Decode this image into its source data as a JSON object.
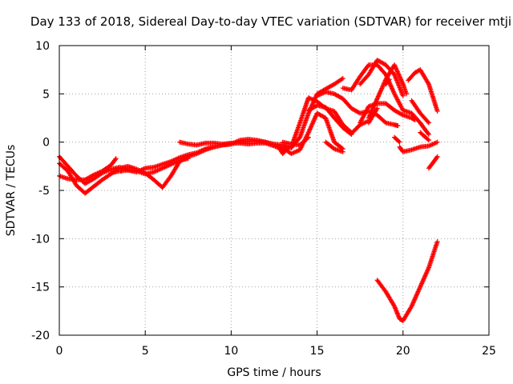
{
  "chart_data": {
    "type": "scatter",
    "title": "Day 133 of 2018, Sidereal Day-to-day VTEC variation (SDTVAR) for receiver mtji",
    "xlabel": "GPS time / hours",
    "ylabel": "SDTVAR / TECUs",
    "xlim": [
      0,
      25
    ],
    "ylim": [
      -20,
      10
    ],
    "xticks": [
      0,
      5,
      10,
      15,
      20,
      25
    ],
    "yticks": [
      -20,
      -15,
      -10,
      -5,
      0,
      5,
      10
    ],
    "grid": true,
    "marker": "plus",
    "color": "#ff0000",
    "tracks": [
      [
        [
          0,
          -1.5
        ],
        [
          0.5,
          -2.5
        ],
        [
          1.0,
          -3.5
        ],
        [
          1.5,
          -4.3
        ],
        [
          2.0,
          -3.8
        ],
        [
          2.5,
          -3.2
        ],
        [
          3.0,
          -2.8
        ],
        [
          3.5,
          -2.6
        ],
        [
          4.0,
          -2.9
        ],
        [
          4.5,
          -3.1
        ],
        [
          5.0,
          -2.7
        ],
        [
          5.5,
          -2.6
        ],
        [
          6.0,
          -2.3
        ],
        [
          6.5,
          -2.0
        ],
        [
          7.0,
          -1.6
        ],
        [
          7.5,
          -1.3
        ],
        [
          8.0,
          -1.1
        ],
        [
          8.5,
          -0.7
        ],
        [
          9.0,
          -0.5
        ],
        [
          9.5,
          -0.3
        ],
        [
          10.0,
          -0.2
        ],
        [
          10.5,
          0.0
        ],
        [
          11.0,
          0.1
        ],
        [
          11.5,
          0.1
        ],
        [
          12.0,
          0.0
        ],
        [
          12.5,
          -0.2
        ],
        [
          13.0,
          -0.3
        ],
        [
          13.5,
          -0.6
        ],
        [
          14.0,
          0.5
        ],
        [
          14.5,
          3.0
        ],
        [
          15.0,
          5.0
        ],
        [
          15.5,
          5.5
        ],
        [
          16.0,
          6.0
        ],
        [
          16.5,
          6.6
        ]
      ],
      [
        [
          0,
          -2.2
        ],
        [
          0.5,
          -3.0
        ],
        [
          1.0,
          -4.5
        ],
        [
          1.5,
          -5.3
        ],
        [
          2.0,
          -4.6
        ],
        [
          2.5,
          -3.9
        ],
        [
          3.0,
          -3.3
        ],
        [
          3.5,
          -2.7
        ],
        [
          4.0,
          -2.5
        ],
        [
          4.5,
          -2.8
        ],
        [
          5.0,
          -3.2
        ],
        [
          5.5,
          -3.9
        ],
        [
          6.0,
          -4.7
        ],
        [
          6.5,
          -3.5
        ],
        [
          7.0,
          -2.0
        ],
        [
          7.5,
          -1.5
        ],
        [
          8.0,
          -1.2
        ],
        [
          8.5,
          -0.8
        ],
        [
          9.0,
          -0.5
        ],
        [
          9.5,
          -0.3
        ],
        [
          10.0,
          -0.2
        ],
        [
          10.5,
          0.2
        ],
        [
          11.0,
          0.3
        ],
        [
          11.5,
          0.2
        ],
        [
          12.0,
          0.0
        ],
        [
          12.5,
          -0.3
        ],
        [
          13.0,
          -0.6
        ],
        [
          13.5,
          -1.2
        ],
        [
          14.0,
          -0.8
        ],
        [
          14.5,
          1.0
        ],
        [
          15.0,
          3.0
        ],
        [
          15.5,
          2.5
        ],
        [
          16.0,
          0.0
        ],
        [
          16.5,
          -0.7
        ]
      ],
      [
        [
          0,
          -3.5
        ],
        [
          0.5,
          -3.8
        ],
        [
          1.0,
          -3.9
        ],
        [
          1.5,
          -3.9
        ],
        [
          2.0,
          -3.4
        ],
        [
          2.5,
          -3.0
        ],
        [
          3.0,
          -2.4
        ],
        [
          3.3,
          -1.7
        ]
      ],
      [
        [
          3.0,
          -3.2
        ],
        [
          3.5,
          -3.0
        ],
        [
          4.0,
          -2.9
        ],
        [
          4.5,
          -3.0
        ],
        [
          5.0,
          -3.3
        ],
        [
          5.5,
          -3.1
        ],
        [
          6.0,
          -2.7
        ],
        [
          6.5,
          -2.3
        ],
        [
          7.0,
          -1.9
        ],
        [
          7.5,
          -1.7
        ]
      ],
      [
        [
          7.0,
          0.0
        ],
        [
          7.5,
          -0.2
        ],
        [
          8.0,
          -0.3
        ],
        [
          8.5,
          -0.1
        ],
        [
          9.0,
          -0.1
        ],
        [
          9.5,
          -0.2
        ],
        [
          10.0,
          -0.1
        ],
        [
          10.5,
          -0.1
        ],
        [
          11.0,
          -0.2
        ],
        [
          11.5,
          -0.1
        ],
        [
          12.0,
          -0.1
        ],
        [
          12.5,
          -0.4
        ],
        [
          13.0,
          -0.8
        ],
        [
          13.5,
          -0.5
        ],
        [
          14.0,
          2.0
        ],
        [
          14.5,
          4.6
        ],
        [
          15.0,
          4.2
        ],
        [
          15.5,
          3.5
        ],
        [
          16.0,
          3.2
        ],
        [
          16.5,
          1.8
        ],
        [
          17.0,
          1.0
        ]
      ],
      [
        [
          13.0,
          0.0
        ],
        [
          13.5,
          -0.2
        ],
        [
          14.0,
          -0.3
        ],
        [
          14.5,
          0.5
        ]
      ],
      [
        [
          12.8,
          -0.6
        ],
        [
          13.0,
          -1.2
        ],
        [
          13.2,
          -0.8
        ]
      ],
      [
        [
          14.5,
          3.3
        ],
        [
          15.0,
          3.8
        ],
        [
          15.5,
          3.6
        ],
        [
          16.0,
          2.5
        ],
        [
          16.5,
          1.5
        ],
        [
          17.0,
          0.8
        ]
      ],
      [
        [
          15.0,
          4.8
        ],
        [
          15.5,
          5.2
        ],
        [
          16.0,
          5.0
        ],
        [
          16.5,
          4.5
        ],
        [
          17.0,
          3.5
        ],
        [
          17.5,
          3.0
        ],
        [
          18.0,
          3.2
        ],
        [
          18.5,
          2.8
        ],
        [
          19.0,
          2.0
        ],
        [
          19.5,
          1.8
        ],
        [
          19.7,
          1.7
        ]
      ],
      [
        [
          16.5,
          5.6
        ],
        [
          17.0,
          5.4
        ],
        [
          17.5,
          6.8
        ],
        [
          18.0,
          8.0
        ],
        [
          18.5,
          8.0
        ],
        [
          19.0,
          7.0
        ],
        [
          19.5,
          5.0
        ],
        [
          20.0,
          3.3
        ],
        [
          20.5,
          3.0
        ],
        [
          21.0,
          2.0
        ],
        [
          21.2,
          1.5
        ],
        [
          21.5,
          0.8
        ]
      ],
      [
        [
          17.5,
          2.0
        ],
        [
          18.0,
          3.7
        ],
        [
          18.5,
          4.0
        ],
        [
          19.0,
          4.0
        ],
        [
          19.5,
          3.3
        ],
        [
          20.0,
          2.8
        ],
        [
          20.5,
          2.5
        ],
        [
          20.7,
          2.3
        ]
      ],
      [
        [
          18.0,
          2.5
        ],
        [
          18.5,
          4.5
        ],
        [
          19.0,
          6.5
        ],
        [
          19.5,
          8.0
        ],
        [
          20.0,
          6.0
        ],
        [
          20.2,
          5.0
        ]
      ],
      [
        [
          15.5,
          0.0
        ],
        [
          16.0,
          -0.7
        ],
        [
          16.5,
          -1.0
        ]
      ],
      [
        [
          17.0,
          0.9
        ],
        [
          17.5,
          1.8
        ],
        [
          18.0,
          2.2
        ]
      ],
      [
        [
          17.5,
          6.0
        ],
        [
          18.0,
          7.0
        ],
        [
          18.5,
          8.5
        ],
        [
          19.0,
          8.0
        ],
        [
          19.5,
          7.0
        ],
        [
          20.0,
          4.8
        ]
      ],
      [
        [
          19.0,
          6.0
        ],
        [
          19.2,
          6.5
        ]
      ],
      [
        [
          18.0,
          2.0
        ],
        [
          18.5,
          3.5
        ]
      ],
      [
        [
          19.8,
          -0.5
        ],
        [
          20.0,
          -1.0
        ],
        [
          20.5,
          -0.8
        ],
        [
          21.0,
          -0.5
        ],
        [
          21.5,
          -0.4
        ],
        [
          22.0,
          0.0
        ]
      ],
      [
        [
          19.5,
          0.5
        ],
        [
          19.8,
          0.0
        ]
      ],
      [
        [
          20.3,
          6.4
        ],
        [
          20.7,
          7.2
        ],
        [
          21.0,
          7.5
        ],
        [
          21.5,
          6.0
        ],
        [
          22.0,
          3.2
        ]
      ],
      [
        [
          20.5,
          4.3
        ],
        [
          21.0,
          3.0
        ],
        [
          21.5,
          2.0
        ]
      ],
      [
        [
          21.0,
          1.0
        ],
        [
          21.5,
          0.2
        ]
      ],
      [
        [
          21.5,
          -2.7
        ],
        [
          21.8,
          -2.0
        ],
        [
          22.0,
          -1.5
        ]
      ],
      [
        [
          18.5,
          -14.3
        ],
        [
          19.0,
          -15.5
        ],
        [
          19.5,
          -17.0
        ],
        [
          19.8,
          -18.3
        ],
        [
          20.0,
          -18.5
        ],
        [
          20.5,
          -17.0
        ],
        [
          21.0,
          -15.0
        ],
        [
          21.5,
          -13.0
        ],
        [
          22.0,
          -10.3
        ]
      ]
    ],
    "stray_points": [
      [
        3.6,
        -3.0
      ]
    ]
  }
}
